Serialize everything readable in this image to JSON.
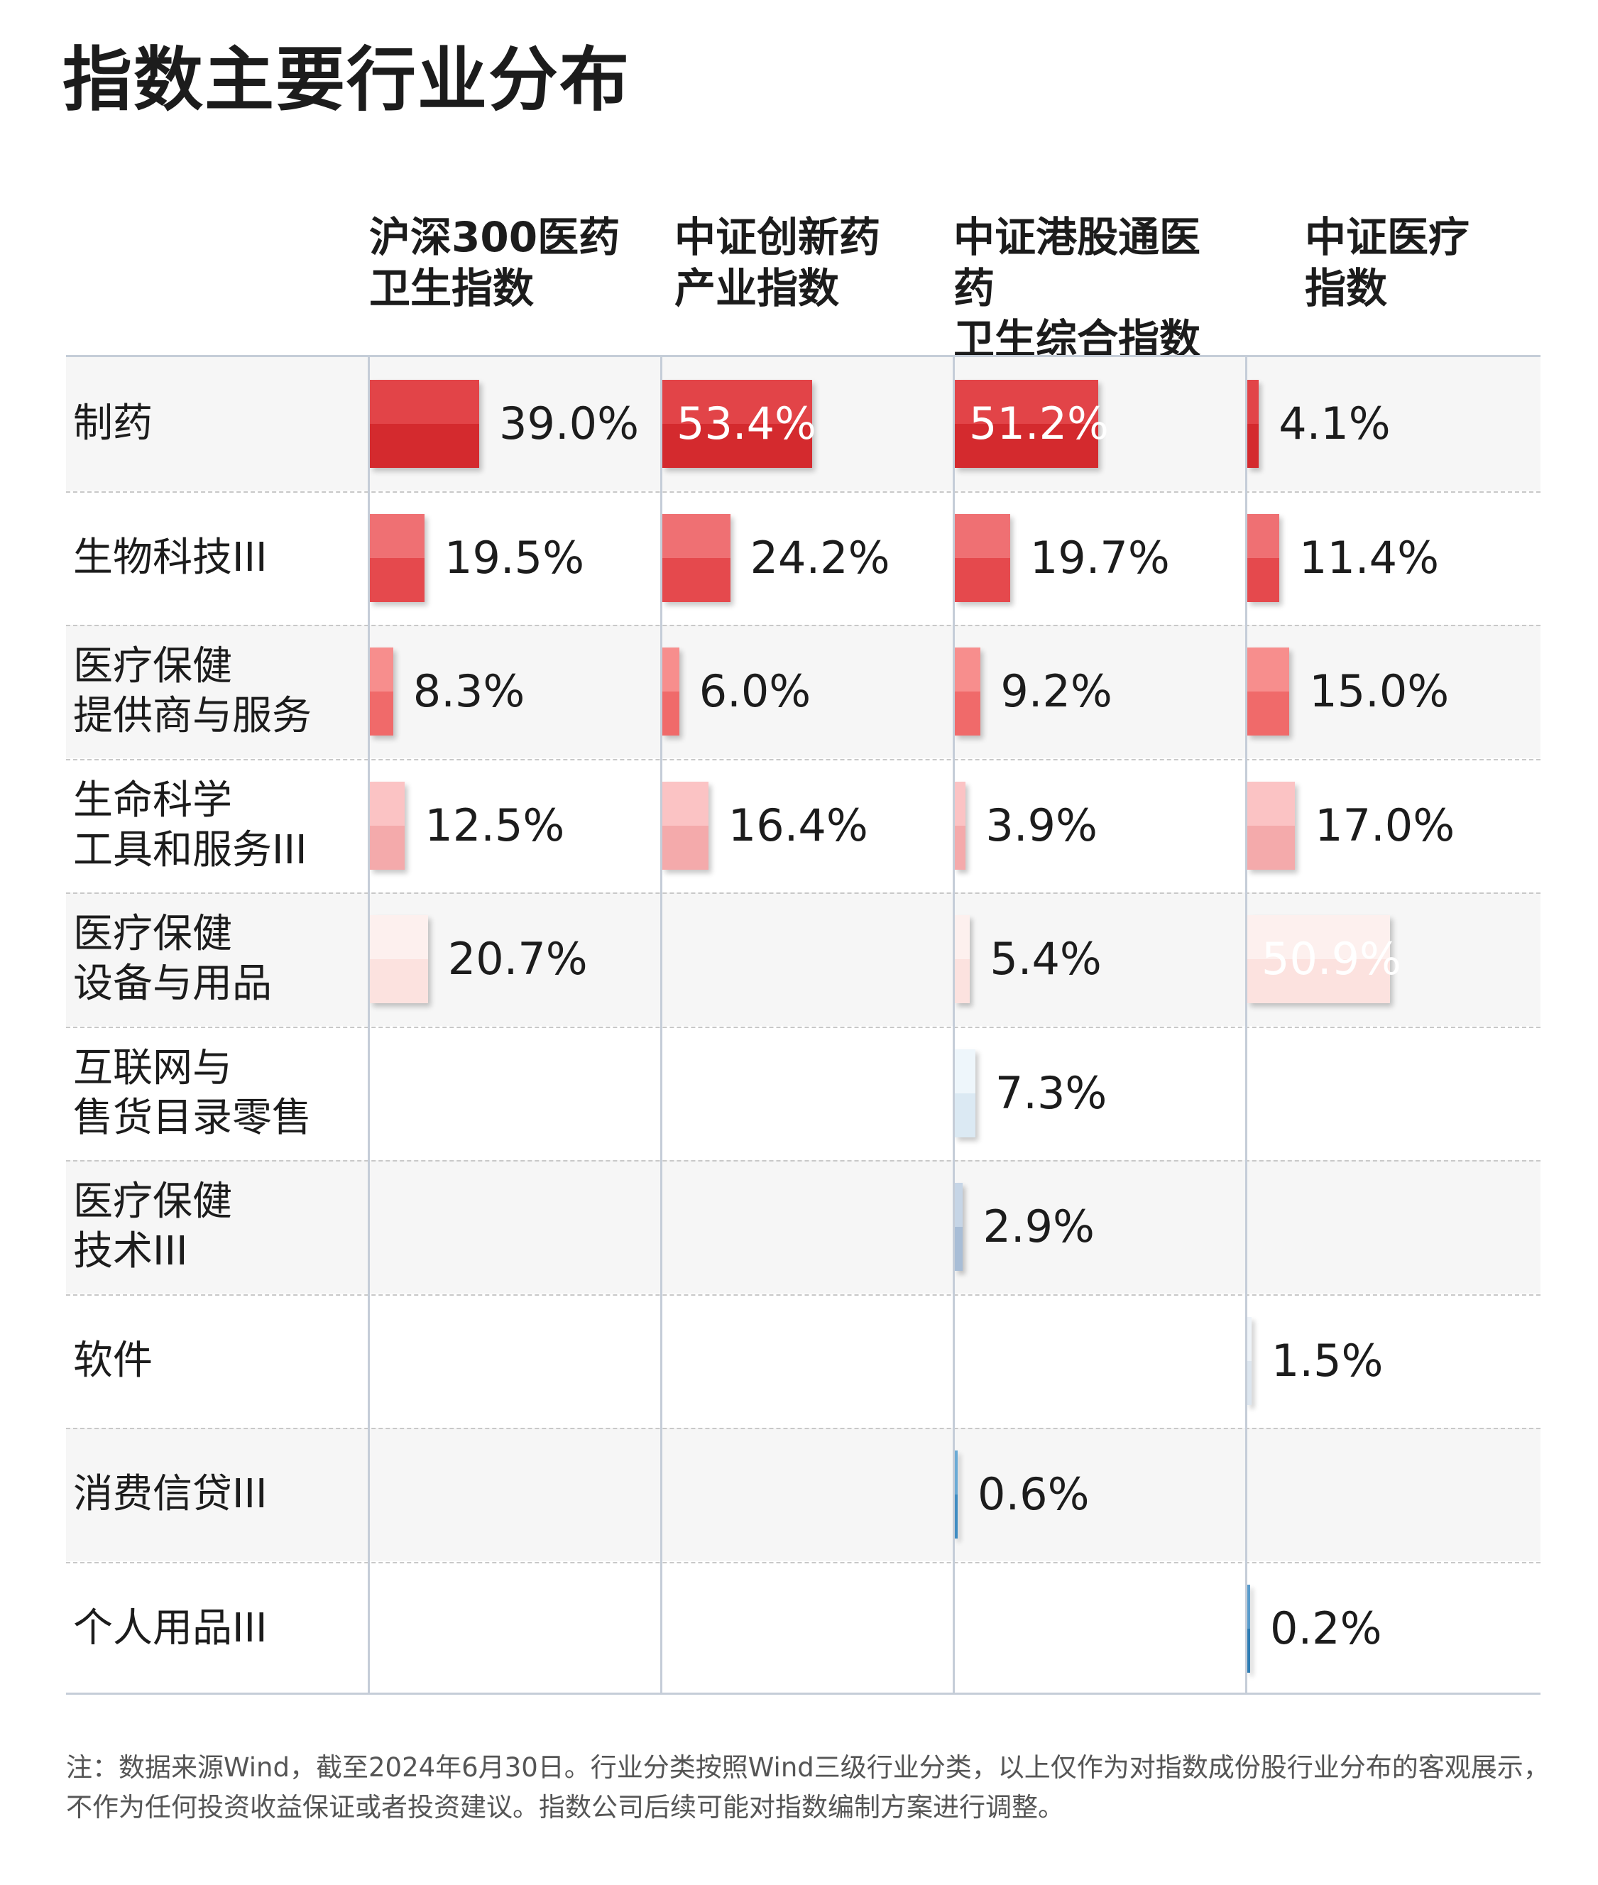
{
  "title": "指数主要行业分布",
  "chart_data": {
    "type": "bar",
    "orientation": "horizontal-small-multiples",
    "columns": [
      "沪深300医药\n卫生指数",
      "中证创新药\n产业指数",
      "中证港股通医药\n卫生综合指数",
      "中证医疗\n指数"
    ],
    "categories": [
      "制药",
      "生物科技III",
      "医疗保健\n提供商与服务",
      "生命科学\n工具和服务III",
      "医疗保健\n设备与用品",
      "互联网与\n售货目录零售",
      "医疗保健\n技术III",
      "软件",
      "消费信贷III",
      "个人用品III"
    ],
    "series": [
      {
        "values": [
          39.0,
          19.5,
          8.3,
          12.5,
          20.7,
          null,
          null,
          null,
          null,
          null
        ],
        "labels": [
          "39.0%",
          "19.5%",
          "8.3%",
          "12.5%",
          "20.7%",
          "",
          "",
          "",
          "",
          ""
        ]
      },
      {
        "values": [
          53.4,
          24.2,
          6.0,
          16.4,
          null,
          null,
          null,
          null,
          null,
          null
        ],
        "labels": [
          "53.4%",
          "24.2%",
          "6.0%",
          "16.4%",
          "",
          "",
          "",
          "",
          "",
          ""
        ]
      },
      {
        "values": [
          51.2,
          19.7,
          9.2,
          3.9,
          5.4,
          7.3,
          2.9,
          null,
          0.6,
          null
        ],
        "labels": [
          "51.2%",
          "19.7%",
          "9.2%",
          "3.9%",
          "5.4%",
          "7.3%",
          "2.9%",
          "",
          "0.6%",
          ""
        ]
      },
      {
        "values": [
          4.1,
          11.4,
          15.0,
          17.0,
          50.9,
          null,
          null,
          1.5,
          null,
          0.2
        ],
        "labels": [
          "4.1%",
          "11.4%",
          "15.0%",
          "17.0%",
          "50.9%",
          "",
          "",
          "1.5%",
          "",
          "0.2%"
        ]
      }
    ],
    "category_colors": [
      "#d42a2e",
      "#e5494d",
      "#f06a6a",
      "#f4aaab",
      "#fce2df",
      "#dbe9f3",
      "#a8bdd6",
      "#dde6ef",
      "#3f8cc2",
      "#2f7db4"
    ],
    "category_colors_light": [
      "#e24448",
      "#ef7073",
      "#f78e8d",
      "#fbc3c4",
      "#fdf0ee",
      "#eef6fb",
      "#c6d5e6",
      "#eef3f8",
      "#6aaad5",
      "#5a9ccc"
    ],
    "value_scale_max": 53.4
  },
  "note": "注：数据来源Wind，截至2024年6月30日。行业分类按照Wind三级行业分类，以上仅作为对指数成份股行业分布的客观展示，不作为任何投资收益保证或者投资建议。指数公司后续可能对指数编制方案进行调整。"
}
